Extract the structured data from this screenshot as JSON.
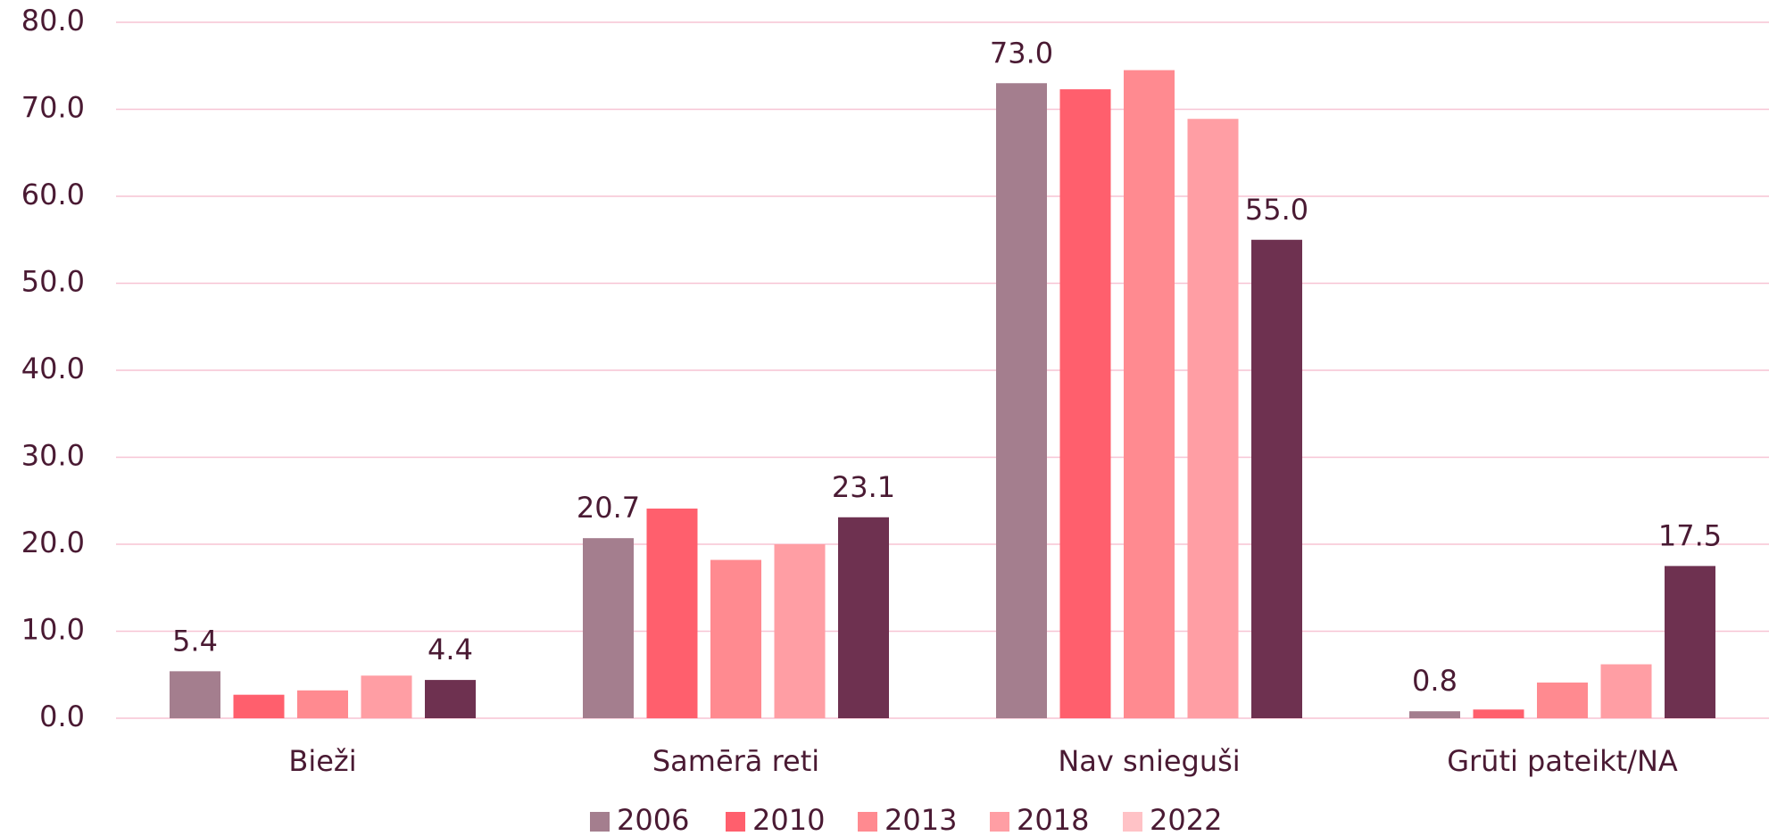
{
  "chart_data": {
    "type": "bar",
    "categories": [
      "Bieži",
      "Samērā reti",
      "Nav snieguši",
      "Grūti pateikt/NA"
    ],
    "series": [
      {
        "name": "2006",
        "color": "#a47e8e",
        "values": [
          5.4,
          20.7,
          73.0,
          0.8
        ],
        "value_labels": [
          "5.4",
          "20.7",
          "73.0",
          "0.8"
        ]
      },
      {
        "name": "2010",
        "color": "#ff5f6d",
        "values": [
          2.7,
          24.1,
          72.3,
          1.0
        ]
      },
      {
        "name": "2013",
        "color": "#ff8a90",
        "values": [
          3.2,
          18.2,
          74.5,
          4.1
        ]
      },
      {
        "name": "2018",
        "color": "#ff9ea4",
        "values": [
          4.9,
          20.0,
          68.9,
          6.2
        ]
      },
      {
        "name": "2022",
        "color": "#6e3150",
        "legend_color": "#ffc2c6",
        "values": [
          4.4,
          23.1,
          55.0,
          17.5
        ],
        "value_labels": [
          "4.4",
          "23.1",
          "55.0",
          "17.5"
        ]
      }
    ],
    "ylim": [
      0,
      80
    ],
    "yticks": [
      {
        "value": 0,
        "label": "0.0"
      },
      {
        "value": 10,
        "label": "10.0"
      },
      {
        "value": 20,
        "label": "20.0"
      },
      {
        "value": 30,
        "label": "30.0"
      },
      {
        "value": 40,
        "label": "40.0"
      },
      {
        "value": 50,
        "label": "50.0"
      },
      {
        "value": 60,
        "label": "60.0"
      },
      {
        "value": 70,
        "label": "70.0"
      },
      {
        "value": 80,
        "label": "80.0"
      }
    ],
    "grid": true,
    "legend": "bottom"
  }
}
